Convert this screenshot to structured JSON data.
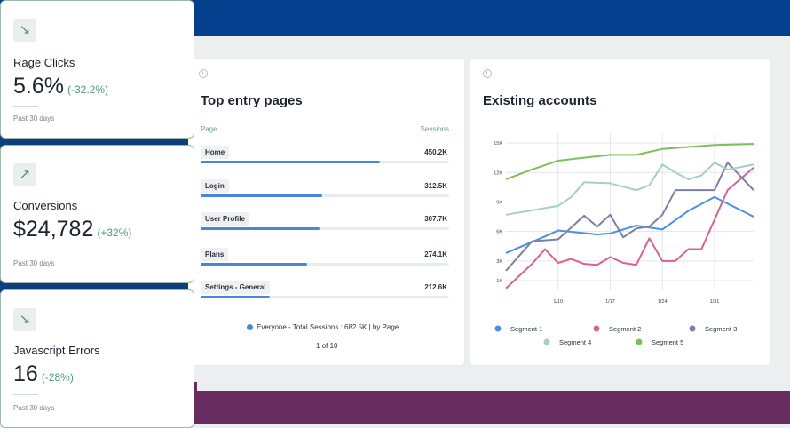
{
  "kpis": [
    {
      "label": "Rage Clicks",
      "value": "5.6%",
      "delta": "(-32.2%)",
      "period": "Past 30 days",
      "icon": "arrow-down-right-icon"
    },
    {
      "label": "Conversions",
      "value": "$24,782",
      "delta": "(+32%)",
      "period": "Past 30 days",
      "icon": "arrow-up-right-icon"
    },
    {
      "label": "Javascript Errors",
      "value": "16",
      "delta": "(-28%)",
      "period": "Past 30 days",
      "icon": "arrow-down-right-icon"
    }
  ],
  "entry_pages": {
    "title": "Top entry pages",
    "col_page": "Page",
    "col_sessions": "Sessions",
    "rows": [
      {
        "label": "Home",
        "value": "450.2K",
        "share": 0.72
      },
      {
        "label": "Login",
        "value": "312.5K",
        "share": 0.49
      },
      {
        "label": "User Profile",
        "value": "307.7K",
        "share": 0.48
      },
      {
        "label": "Plans",
        "value": "274.1K",
        "share": 0.43
      },
      {
        "label": "Settings - General",
        "value": "212.6K",
        "share": 0.28
      }
    ],
    "legend": "Everyone - Total Sessions : 682.5K | by Page",
    "pager": "1 of 10",
    "accent": "#4a86d8"
  },
  "accounts": {
    "title": "Existing accounts"
  },
  "chart_data": {
    "type": "line",
    "title": "Existing accounts",
    "xlabel": "",
    "ylabel": "",
    "x": [
      0,
      1,
      2,
      3,
      4,
      5,
      6,
      7,
      8,
      9,
      10,
      11,
      12,
      13,
      14,
      15,
      16,
      17,
      18,
      19
    ],
    "x_ticks": [
      {
        "x": 4,
        "label": "1/10"
      },
      {
        "x": 8,
        "label": "1/17"
      },
      {
        "x": 12,
        "label": "1/24"
      },
      {
        "x": 16,
        "label": "1/31"
      }
    ],
    "y_ticks": [
      {
        "value": 1000,
        "label": "1K"
      },
      {
        "value": 3000,
        "label": "3K"
      },
      {
        "value": 6000,
        "label": "6K"
      },
      {
        "value": 9000,
        "label": "9K"
      },
      {
        "value": 12000,
        "label": "12K"
      },
      {
        "value": 15000,
        "label": "15K"
      }
    ],
    "ylim": [
      0,
      16000
    ],
    "xlim": [
      0,
      19
    ],
    "series": [
      {
        "name": "Segment 1",
        "color": "#4a90e2",
        "x": [
          0,
          3,
          4,
          7,
          8,
          10,
          12,
          14,
          16,
          19
        ],
        "values": [
          3800,
          5500,
          6100,
          5700,
          5800,
          6600,
          6200,
          8100,
          9500,
          7500
        ]
      },
      {
        "name": "Segment 2",
        "color": "#d9628e",
        "x": [
          0,
          2,
          3,
          4,
          5,
          6,
          7,
          8,
          9,
          10,
          11,
          12,
          13,
          14,
          15,
          17,
          19
        ],
        "values": [
          200,
          2700,
          4200,
          2800,
          3200,
          2700,
          2600,
          3400,
          2800,
          2600,
          5300,
          3000,
          3000,
          4200,
          4200,
          10200,
          12500
        ]
      },
      {
        "name": "Segment 3",
        "color": "#7b7fa6",
        "x": [
          0,
          2,
          4,
          5,
          6,
          7,
          8,
          9,
          10,
          11,
          12,
          13,
          14,
          16,
          17,
          19
        ],
        "values": [
          2000,
          5000,
          5200,
          6400,
          7600,
          6500,
          7700,
          5400,
          6300,
          6500,
          7700,
          10200,
          10200,
          10200,
          13000,
          10200
        ]
      },
      {
        "name": "Segment 4",
        "color": "#a2d2bb",
        "x": [
          0,
          4,
          5,
          6,
          8,
          10,
          11,
          12,
          13,
          14,
          15,
          16,
          17,
          19
        ],
        "values": [
          7700,
          8600,
          9500,
          11000,
          10900,
          10200,
          10700,
          12800,
          12000,
          11300,
          11700,
          13000,
          12300,
          12800
        ]
      },
      {
        "name": "Segment 5",
        "color": "#7dbf5a",
        "x": [
          0,
          2,
          4,
          6,
          8,
          10,
          12,
          14,
          16,
          19
        ],
        "values": [
          11300,
          12300,
          13200,
          13500,
          13800,
          13800,
          14400,
          14600,
          14800,
          14900
        ]
      }
    ]
  }
}
